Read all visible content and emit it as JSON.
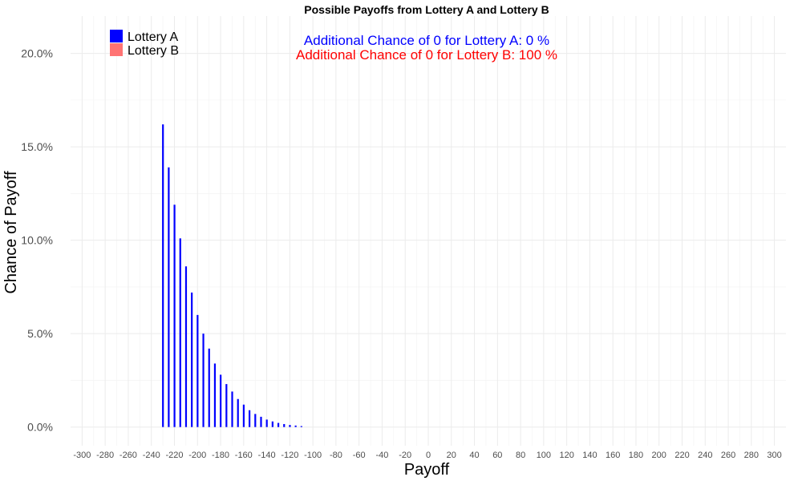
{
  "chart_data": {
    "type": "bar",
    "title": "Possible Payoffs from Lottery A and Lottery B",
    "xlabel": "Payoff",
    "ylabel": "Chance of Payoff",
    "xlim": [
      -310,
      310
    ],
    "ylim": [
      -0.01,
      0.22
    ],
    "x_ticks": [
      -300,
      -280,
      -260,
      -240,
      -220,
      -200,
      -180,
      -160,
      -140,
      -120,
      -100,
      -80,
      -60,
      -40,
      -20,
      0,
      20,
      40,
      60,
      80,
      100,
      120,
      140,
      160,
      180,
      200,
      220,
      240,
      260,
      280,
      300
    ],
    "y_ticks": [
      0,
      0.05,
      0.1,
      0.15,
      0.2
    ],
    "y_tick_labels": [
      "0.0%",
      "5.0%",
      "10.0%",
      "15.0%",
      "20.0%"
    ],
    "grid": true,
    "legend": {
      "placement": "top-left",
      "entries": [
        {
          "label": "Lottery A",
          "color": "#0000ff"
        },
        {
          "label": "Lottery B",
          "color": "#ff7373"
        }
      ]
    },
    "series": [
      {
        "name": "Lottery A",
        "color": "#0000ff",
        "x": [
          -230,
          -225,
          -220,
          -215,
          -210,
          -205,
          -200,
          -195,
          -190,
          -185,
          -180,
          -175,
          -170,
          -165,
          -160,
          -155,
          -150,
          -145,
          -140,
          -135,
          -130,
          -125,
          -120,
          -115,
          -110
        ],
        "values": [
          0.162,
          0.139,
          0.119,
          0.101,
          0.086,
          0.072,
          0.06,
          0.05,
          0.042,
          0.034,
          0.028,
          0.023,
          0.019,
          0.015,
          0.012,
          0.009,
          0.007,
          0.0055,
          0.004,
          0.003,
          0.0022,
          0.0016,
          0.0011,
          0.0008,
          0.0005
        ]
      },
      {
        "name": "Lottery B",
        "color": "#ff7373",
        "x": [],
        "values": []
      }
    ],
    "annotations": [
      {
        "text": "Additional Chance of 0 for Lottery A:  0 %",
        "color": "#0000ff"
      },
      {
        "text": "Additional Chance of 0 for Lottery B:  100 %",
        "color": "#ff0000"
      }
    ]
  }
}
